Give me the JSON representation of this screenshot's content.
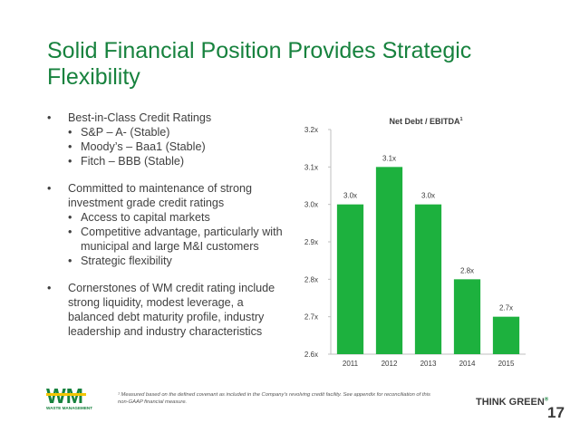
{
  "slide": {
    "title": "Solid Financial Position Provides Strategic Flexibility",
    "page_number": "17",
    "tagline": "THINK GREEN",
    "tagline_mark": "®",
    "footnote": "¹ Measured based on the defined covenant as included in the Company’s revolving credit facility. See appendix for reconciliation of this non-GAAP financial measure.",
    "logo_text": "WM",
    "logo_subtext": "WASTE MANAGEMENT"
  },
  "bullets": [
    {
      "text": "Best-in-Class Credit Ratings",
      "sub": [
        "S&P – A- (Stable)",
        "Moody’s – Baa1 (Stable)",
        "Fitch – BBB (Stable)"
      ]
    },
    {
      "text": "Committed to maintenance of strong investment grade credit ratings",
      "sub": [
        "Access to capital markets",
        "Competitive advantage, particularly with municipal and large M&I customers",
        "Strategic flexibility"
      ]
    },
    {
      "text": "Cornerstones of WM credit rating include strong liquidity, modest leverage, a balanced debt maturity profile, industry leadership and industry characteristics",
      "sub": []
    }
  ],
  "colors": {
    "accent": "#17823e",
    "bar": "#1db13e",
    "text": "#3f3f3f"
  },
  "chart_data": {
    "type": "bar",
    "title": "Net Debt / EBITDA",
    "title_superscript": "1",
    "categories": [
      "2011",
      "2012",
      "2013",
      "2014",
      "2015"
    ],
    "values": [
      3.0,
      3.1,
      3.0,
      2.8,
      2.7
    ],
    "data_labels": [
      "3.0x",
      "3.1x",
      "3.0x",
      "2.8x",
      "2.7x"
    ],
    "yticks": [
      "2.6x",
      "2.7x",
      "2.8x",
      "2.9x",
      "3.0x",
      "3.1x",
      "3.2x"
    ],
    "ylim": [
      2.6,
      3.2
    ],
    "xlabel": "",
    "ylabel": "",
    "grid": false
  }
}
